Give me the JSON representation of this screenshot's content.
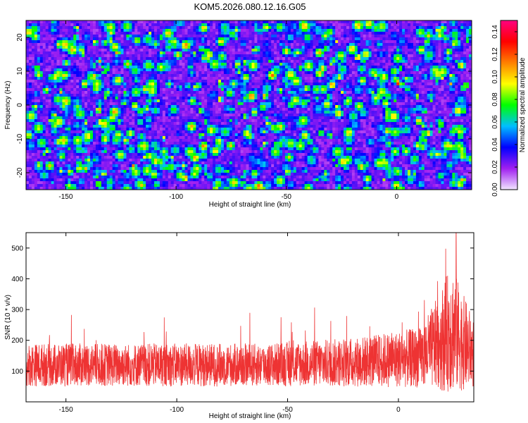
{
  "chart_data": [
    {
      "type": "heatmap",
      "title": "KOM5.2026.080.12.16.G05",
      "xlabel": "Height of straight line (km)",
      "ylabel": "Frequency (Hz)",
      "xlim": [
        -168,
        34
      ],
      "ylim": [
        -25,
        25
      ],
      "xticks": [
        -150,
        -100,
        -50,
        0
      ],
      "yticks": [
        -20,
        -10,
        0,
        10,
        20
      ],
      "colorbar": {
        "label": "Normalized spectral amplitude",
        "range": [
          0,
          0.15
        ],
        "ticks": [
          "0.00",
          "0.02",
          "0.04",
          "0.06",
          "0.08",
          "0.10",
          "0.12",
          "0.14"
        ],
        "colors": [
          "#f2e6ff",
          "#a020f0",
          "#0000ff",
          "#00bfff",
          "#00ff00",
          "#ffff00",
          "#ff8000",
          "#ff0000",
          "#ff0080"
        ]
      },
      "notes": "Noisy field dominated by purple/blue, scattered cyan/green/yellow hotspots, one red peak near x=0, y=7"
    },
    {
      "type": "line",
      "xlabel": "Height of straight line (km)",
      "ylabel": "SNR (10 * v/v)",
      "xlim": [
        -168,
        34
      ],
      "ylim": [
        0,
        550
      ],
      "xticks": [
        -150,
        -100,
        -50,
        0
      ],
      "yticks": [
        100,
        200,
        300,
        400,
        500
      ],
      "series": [
        {
          "name": "SNR",
          "color": "#ee3333",
          "baseline": 120,
          "noise_amplitude": 70,
          "envelope_x": [
            -168,
            -120,
            -60,
            -20,
            10,
            18,
            24,
            28,
            34
          ],
          "envelope_mult": [
            1.0,
            1.0,
            1.0,
            1.15,
            1.4,
            2.2,
            3.0,
            2.4,
            1.6
          ],
          "peak_x": 26,
          "peak_y": 550
        }
      ]
    }
  ]
}
